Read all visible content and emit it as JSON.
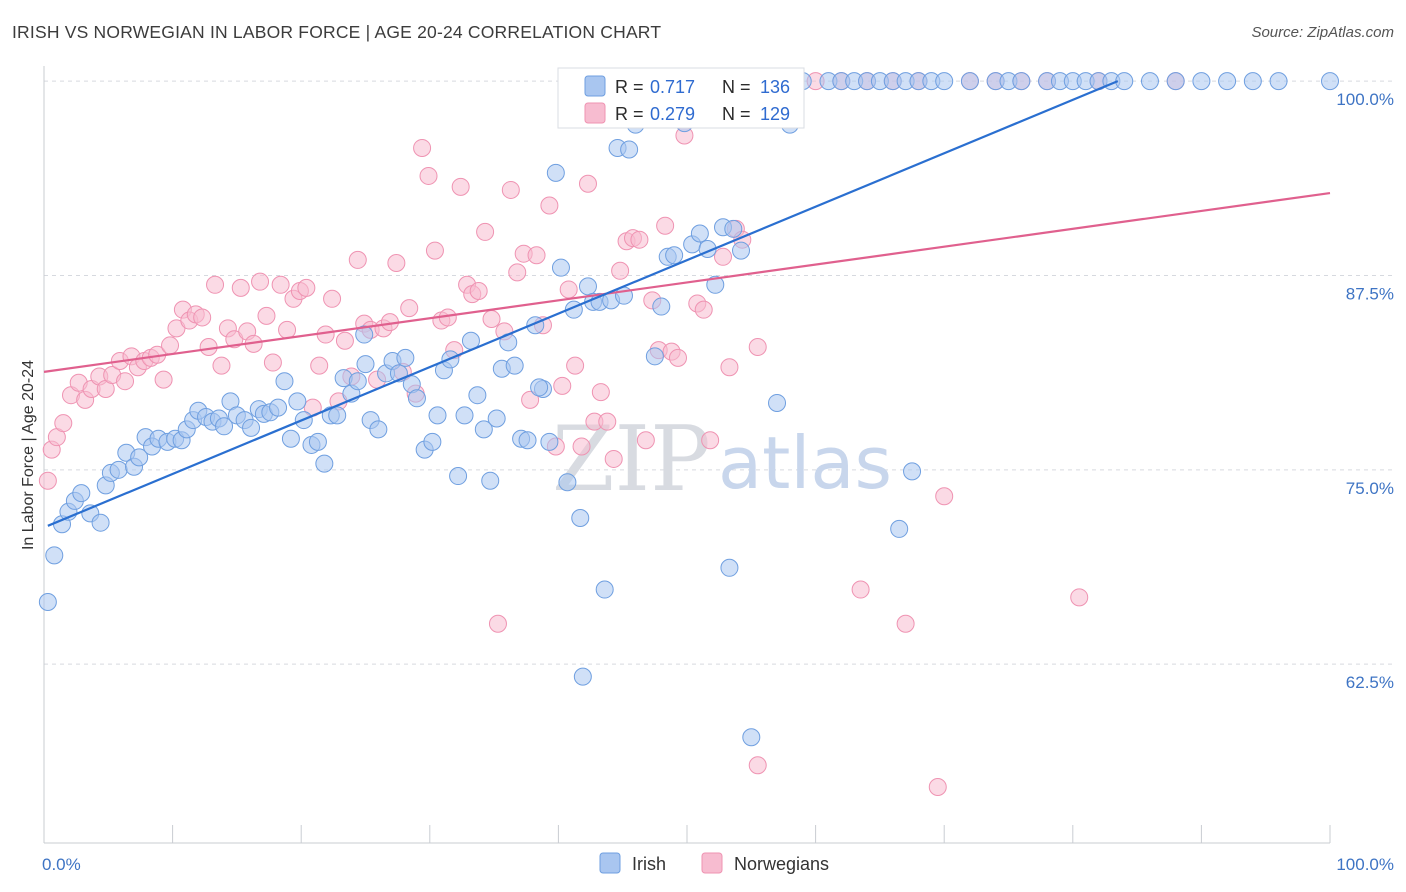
{
  "header": {
    "title": "IRISH VS NORWEGIAN IN LABOR FORCE | AGE 20-24 CORRELATION CHART",
    "source": "Source: ZipAtlas.com"
  },
  "watermark": {
    "zip": "ZIP",
    "atlas": "atlas"
  },
  "colors": {
    "irish_fill": "#a9c6f0",
    "irish_stroke": "#6f9fe0",
    "irish_line": "#2a6fd0",
    "norw_fill": "#f7bcd0",
    "norw_stroke": "#ef93b2",
    "norw_line": "#e0608e",
    "grid": "#d6d9df",
    "tick_text": "#3e74c4"
  },
  "chart_data": {
    "type": "scatter",
    "title": "IRISH VS NORWEGIAN IN LABOR FORCE | AGE 20-24 CORRELATION CHART",
    "xlabel": "",
    "ylabel": "In Labor Force | Age 20-24",
    "xlim": [
      0,
      100
    ],
    "ylim": [
      51,
      102
    ],
    "x_tick_labels": [
      "0.0%",
      "100.0%"
    ],
    "y_ticks": [
      62.5,
      75.0,
      87.5,
      100.0
    ],
    "y_tick_labels": [
      "62.5%",
      "75.0%",
      "87.5%",
      "100.0%"
    ],
    "grid": true,
    "legend_top": [
      {
        "r_label": "R =",
        "r": "0.717",
        "n_label": "N =",
        "n": "136"
      },
      {
        "r_label": "R =",
        "r": "0.279",
        "n_label": "N =",
        "n": "129"
      }
    ],
    "series": [
      {
        "name": "Irish",
        "trend": {
          "x0": 0.3,
          "y0": 71.4,
          "x1": 83.5,
          "y1": 100.0
        },
        "points": [
          [
            0.3,
            66.5
          ],
          [
            0.8,
            69.5
          ],
          [
            1.4,
            71.5
          ],
          [
            1.9,
            72.3
          ],
          [
            2.4,
            73.0
          ],
          [
            2.9,
            73.5
          ],
          [
            3.6,
            72.2
          ],
          [
            4.4,
            71.6
          ],
          [
            4.8,
            74.0
          ],
          [
            5.2,
            74.8
          ],
          [
            5.8,
            75.0
          ],
          [
            6.4,
            76.1
          ],
          [
            7.0,
            75.2
          ],
          [
            7.4,
            75.8
          ],
          [
            7.9,
            77.1
          ],
          [
            8.4,
            76.5
          ],
          [
            8.9,
            77.0
          ],
          [
            9.6,
            76.8
          ],
          [
            10.2,
            77.0
          ],
          [
            10.7,
            76.9
          ],
          [
            11.1,
            77.6
          ],
          [
            11.6,
            78.2
          ],
          [
            12.0,
            78.8
          ],
          [
            12.6,
            78.4
          ],
          [
            13.1,
            78.1
          ],
          [
            13.6,
            78.3
          ],
          [
            14.0,
            77.8
          ],
          [
            14.5,
            79.4
          ],
          [
            15.0,
            78.5
          ],
          [
            15.6,
            78.2
          ],
          [
            16.1,
            77.7
          ],
          [
            16.7,
            78.9
          ],
          [
            17.1,
            78.6
          ],
          [
            17.6,
            78.7
          ],
          [
            18.2,
            79.0
          ],
          [
            18.7,
            80.7
          ],
          [
            19.2,
            77.0
          ],
          [
            19.7,
            79.4
          ],
          [
            20.2,
            78.2
          ],
          [
            20.8,
            76.6
          ],
          [
            21.3,
            76.8
          ],
          [
            21.8,
            75.4
          ],
          [
            22.3,
            78.5
          ],
          [
            22.8,
            78.5
          ],
          [
            23.3,
            80.9
          ],
          [
            23.9,
            79.9
          ],
          [
            24.4,
            80.7
          ],
          [
            24.9,
            83.7
          ],
          [
            25.4,
            78.2
          ],
          [
            26.0,
            77.6
          ],
          [
            26.6,
            81.2
          ],
          [
            27.1,
            82.0
          ],
          [
            27.6,
            81.2
          ],
          [
            28.1,
            82.2
          ],
          [
            28.6,
            80.5
          ],
          [
            29.0,
            79.6
          ],
          [
            29.6,
            76.3
          ],
          [
            30.2,
            76.8
          ],
          [
            30.6,
            78.5
          ],
          [
            31.1,
            81.4
          ],
          [
            31.6,
            82.1
          ],
          [
            32.2,
            74.6
          ],
          [
            32.7,
            78.5
          ],
          [
            33.2,
            83.3
          ],
          [
            33.7,
            79.8
          ],
          [
            34.2,
            77.6
          ],
          [
            34.7,
            74.3
          ],
          [
            35.2,
            78.3
          ],
          [
            35.6,
            81.5
          ],
          [
            36.1,
            83.2
          ],
          [
            36.6,
            81.7
          ],
          [
            37.1,
            77.0
          ],
          [
            37.6,
            76.9
          ],
          [
            38.2,
            84.3
          ],
          [
            38.8,
            80.2
          ],
          [
            39.3,
            76.8
          ],
          [
            39.8,
            94.1
          ],
          [
            40.2,
            88.0
          ],
          [
            40.7,
            74.2
          ],
          [
            41.2,
            85.3
          ],
          [
            41.7,
            71.9
          ],
          [
            42.3,
            86.8
          ],
          [
            42.7,
            85.8
          ],
          [
            43.2,
            85.8
          ],
          [
            43.6,
            67.3
          ],
          [
            44.1,
            85.9
          ],
          [
            44.6,
            95.7
          ],
          [
            45.1,
            86.2
          ],
          [
            46.0,
            97.2
          ],
          [
            47.5,
            82.3
          ],
          [
            48.0,
            85.5
          ],
          [
            48.5,
            88.7
          ],
          [
            49.0,
            88.8
          ],
          [
            49.8,
            97.3
          ],
          [
            50.4,
            89.5
          ],
          [
            51.0,
            90.2
          ],
          [
            51.6,
            89.2
          ],
          [
            52.2,
            86.9
          ],
          [
            52.8,
            90.6
          ],
          [
            53.3,
            68.7
          ],
          [
            53.6,
            90.5
          ],
          [
            54.2,
            89.1
          ],
          [
            55.0,
            57.8
          ],
          [
            57.0,
            79.3
          ],
          [
            58.0,
            97.2
          ],
          [
            59.0,
            100.0
          ],
          [
            61.0,
            100.0
          ],
          [
            62.0,
            100.0
          ],
          [
            63.0,
            100.0
          ],
          [
            64.0,
            100.0
          ],
          [
            65.0,
            100.0
          ],
          [
            66.0,
            100.0
          ],
          [
            67.0,
            100.0
          ],
          [
            68.0,
            100.0
          ],
          [
            69.0,
            100.0
          ],
          [
            70.0,
            100.0
          ],
          [
            72.0,
            100.0
          ],
          [
            74.0,
            100.0
          ],
          [
            75.0,
            100.0
          ],
          [
            76.0,
            100.0
          ],
          [
            78.0,
            100.0
          ],
          [
            79.0,
            100.0
          ],
          [
            80.0,
            100.0
          ],
          [
            81.0,
            100.0
          ],
          [
            82.0,
            100.0
          ],
          [
            83.0,
            100.0
          ],
          [
            84.0,
            100.0
          ],
          [
            86.0,
            100.0
          ],
          [
            88.0,
            100.0
          ],
          [
            90.0,
            100.0
          ],
          [
            92.0,
            100.0
          ],
          [
            94.0,
            100.0
          ],
          [
            96.0,
            100.0
          ],
          [
            100.0,
            100.0
          ],
          [
            66.5,
            71.2
          ],
          [
            67.5,
            74.9
          ],
          [
            41.9,
            61.7
          ],
          [
            38.5,
            80.3
          ],
          [
            25.0,
            81.8
          ],
          [
            45.5,
            95.6
          ]
        ]
      },
      {
        "name": "Norwegians",
        "trend": {
          "x0": 0.0,
          "y0": 81.3,
          "x1": 100.0,
          "y1": 92.8
        },
        "points": [
          [
            0.3,
            74.3
          ],
          [
            0.6,
            76.3
          ],
          [
            1.0,
            77.1
          ],
          [
            1.5,
            78.0
          ],
          [
            2.1,
            79.8
          ],
          [
            2.7,
            80.6
          ],
          [
            3.2,
            79.5
          ],
          [
            3.7,
            80.2
          ],
          [
            4.3,
            81.0
          ],
          [
            4.8,
            80.2
          ],
          [
            5.3,
            81.1
          ],
          [
            5.9,
            82.0
          ],
          [
            6.3,
            80.7
          ],
          [
            6.8,
            82.3
          ],
          [
            7.3,
            81.6
          ],
          [
            7.8,
            82.0
          ],
          [
            8.3,
            82.2
          ],
          [
            8.8,
            82.4
          ],
          [
            9.3,
            80.8
          ],
          [
            9.8,
            83.0
          ],
          [
            10.3,
            84.1
          ],
          [
            10.8,
            85.3
          ],
          [
            11.3,
            84.6
          ],
          [
            11.8,
            85.0
          ],
          [
            12.3,
            84.8
          ],
          [
            12.8,
            82.9
          ],
          [
            13.3,
            86.9
          ],
          [
            13.8,
            81.7
          ],
          [
            14.3,
            84.1
          ],
          [
            14.8,
            83.4
          ],
          [
            15.3,
            86.7
          ],
          [
            15.8,
            83.9
          ],
          [
            16.3,
            83.1
          ],
          [
            16.8,
            87.1
          ],
          [
            17.3,
            84.9
          ],
          [
            17.8,
            81.9
          ],
          [
            18.4,
            86.9
          ],
          [
            18.9,
            84.0
          ],
          [
            19.4,
            86.0
          ],
          [
            19.9,
            86.5
          ],
          [
            20.4,
            86.7
          ],
          [
            20.9,
            79.0
          ],
          [
            21.4,
            81.7
          ],
          [
            21.9,
            83.7
          ],
          [
            22.4,
            86.0
          ],
          [
            22.9,
            79.4
          ],
          [
            23.4,
            83.3
          ],
          [
            23.9,
            81.0
          ],
          [
            24.4,
            88.5
          ],
          [
            24.9,
            84.4
          ],
          [
            25.4,
            84.0
          ],
          [
            25.9,
            80.8
          ],
          [
            26.4,
            84.1
          ],
          [
            26.9,
            84.5
          ],
          [
            27.4,
            88.3
          ],
          [
            27.9,
            81.3
          ],
          [
            28.4,
            85.4
          ],
          [
            28.9,
            79.9
          ],
          [
            29.4,
            95.7
          ],
          [
            29.9,
            93.9
          ],
          [
            30.4,
            89.1
          ],
          [
            30.9,
            84.6
          ],
          [
            31.4,
            84.8
          ],
          [
            31.9,
            82.7
          ],
          [
            32.4,
            93.2
          ],
          [
            32.9,
            86.9
          ],
          [
            33.3,
            86.3
          ],
          [
            33.8,
            86.5
          ],
          [
            34.3,
            90.3
          ],
          [
            34.8,
            84.7
          ],
          [
            35.3,
            65.1
          ],
          [
            35.8,
            83.9
          ],
          [
            36.3,
            93.0
          ],
          [
            36.8,
            87.7
          ],
          [
            37.3,
            88.9
          ],
          [
            37.8,
            79.5
          ],
          [
            38.3,
            88.8
          ],
          [
            38.8,
            84.3
          ],
          [
            39.3,
            92.0
          ],
          [
            39.8,
            76.5
          ],
          [
            40.3,
            80.4
          ],
          [
            40.8,
            86.6
          ],
          [
            41.3,
            81.7
          ],
          [
            41.8,
            76.5
          ],
          [
            42.3,
            93.4
          ],
          [
            42.8,
            78.1
          ],
          [
            43.3,
            80.0
          ],
          [
            43.8,
            78.1
          ],
          [
            44.3,
            75.7
          ],
          [
            44.8,
            87.8
          ],
          [
            45.3,
            89.7
          ],
          [
            45.8,
            89.9
          ],
          [
            46.3,
            89.8
          ],
          [
            46.8,
            76.9
          ],
          [
            47.3,
            85.9
          ],
          [
            47.8,
            82.7
          ],
          [
            48.3,
            90.7
          ],
          [
            48.8,
            82.6
          ],
          [
            49.3,
            82.2
          ],
          [
            49.8,
            96.5
          ],
          [
            50.3,
            99.7
          ],
          [
            50.8,
            85.7
          ],
          [
            51.3,
            85.3
          ],
          [
            51.8,
            76.9
          ],
          [
            52.3,
            98.0
          ],
          [
            52.8,
            88.7
          ],
          [
            53.3,
            81.6
          ],
          [
            53.8,
            90.5
          ],
          [
            54.3,
            89.8
          ],
          [
            55.0,
            99.7
          ],
          [
            55.5,
            82.9
          ],
          [
            56.0,
            100.0
          ],
          [
            58.0,
            100.0
          ],
          [
            60.0,
            100.0
          ],
          [
            62.0,
            100.0
          ],
          [
            64.0,
            100.0
          ],
          [
            66.0,
            100.0
          ],
          [
            68.0,
            100.0
          ],
          [
            72.0,
            100.0
          ],
          [
            74.0,
            100.0
          ],
          [
            76.0,
            100.0
          ],
          [
            78.0,
            100.0
          ],
          [
            82.0,
            100.0
          ],
          [
            88.0,
            100.0
          ],
          [
            55.5,
            56.0
          ],
          [
            63.5,
            67.3
          ],
          [
            67.0,
            65.1
          ],
          [
            70.0,
            73.3
          ],
          [
            69.5,
            54.6
          ],
          [
            80.5,
            66.8
          ]
        ]
      }
    ]
  },
  "bottom_legend": [
    {
      "label": "Irish"
    },
    {
      "label": "Norwegians"
    }
  ]
}
